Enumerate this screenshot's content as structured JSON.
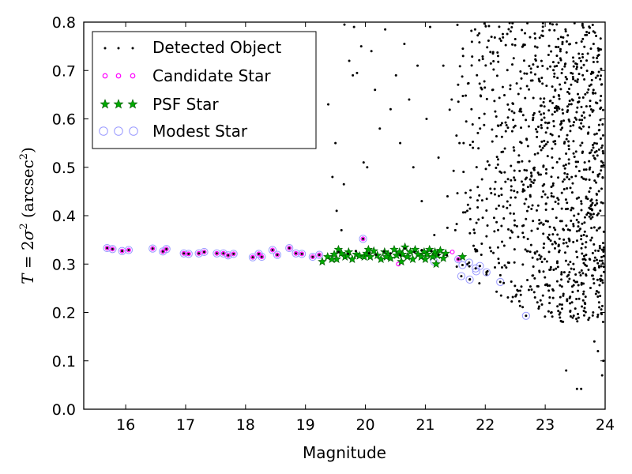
{
  "chart_data": {
    "type": "scatter",
    "xlabel": "Magnitude",
    "ylabel": {
      "var": "T",
      "eq": " = 2",
      "sigma": "σ",
      "two": "2",
      "unit_open": " (arcsec",
      "unit_close": ")"
    },
    "xlim": [
      15.3,
      24.0
    ],
    "ylim": [
      0.0,
      0.8
    ],
    "xticks": [
      16,
      17,
      18,
      19,
      20,
      21,
      22,
      23,
      24
    ],
    "yticks": [
      0.0,
      0.1,
      0.2,
      0.3,
      0.4,
      0.5,
      0.6,
      0.7,
      0.8
    ],
    "xtick_labels": [
      "16",
      "17",
      "18",
      "19",
      "20",
      "21",
      "22",
      "23",
      "24"
    ],
    "ytick_labels": [
      "0.0",
      "0.1",
      "0.2",
      "0.3",
      "0.4",
      "0.5",
      "0.6",
      "0.7",
      "0.8"
    ],
    "grid": false,
    "legend_position": "top-left",
    "colors": {
      "detected": "#000000",
      "candidate": "#ff00ff",
      "psf_fill": "#00aa00",
      "psf_edge": "#005500",
      "modest": "#9999ff"
    },
    "series": [
      {
        "name": "Detected Object",
        "marker": "dot",
        "points": [
          [
            15.69,
            0.333
          ],
          [
            15.78,
            0.331
          ],
          [
            15.94,
            0.327
          ],
          [
            16.05,
            0.329
          ],
          [
            16.45,
            0.332
          ],
          [
            16.62,
            0.326
          ],
          [
            16.68,
            0.331
          ],
          [
            16.97,
            0.322
          ],
          [
            17.05,
            0.321
          ],
          [
            17.22,
            0.322
          ],
          [
            17.31,
            0.325
          ],
          [
            17.52,
            0.322
          ],
          [
            17.63,
            0.322
          ],
          [
            17.71,
            0.318
          ],
          [
            17.8,
            0.321
          ],
          [
            18.12,
            0.314
          ],
          [
            18.22,
            0.321
          ],
          [
            18.27,
            0.315
          ],
          [
            18.45,
            0.329
          ],
          [
            18.53,
            0.319
          ],
          [
            18.73,
            0.333
          ],
          [
            18.84,
            0.322
          ],
          [
            18.94,
            0.321
          ],
          [
            19.12,
            0.315
          ],
          [
            19.23,
            0.319
          ],
          [
            19.55,
            0.325
          ],
          [
            19.71,
            0.321
          ],
          [
            19.84,
            0.327
          ],
          [
            19.96,
            0.352
          ],
          [
            20.06,
            0.322
          ],
          [
            20.18,
            0.319
          ],
          [
            20.31,
            0.326
          ],
          [
            20.42,
            0.322
          ],
          [
            20.58,
            0.318
          ],
          [
            20.66,
            0.332
          ],
          [
            20.82,
            0.325
          ],
          [
            20.94,
            0.329
          ],
          [
            21.1,
            0.327
          ],
          [
            21.22,
            0.319
          ],
          [
            21.36,
            0.318
          ],
          [
            21.55,
            0.31
          ],
          [
            21.62,
            0.298
          ],
          [
            21.73,
            0.303
          ],
          [
            21.84,
            0.291
          ],
          [
            21.91,
            0.296
          ],
          [
            22.02,
            0.283
          ],
          [
            22.25,
            0.263
          ],
          [
            21.6,
            0.275
          ],
          [
            21.74,
            0.268
          ],
          [
            22.68,
            0.193
          ],
          [
            19.65,
            0.795
          ],
          [
            19.73,
            0.72
          ],
          [
            19.79,
            0.69
          ],
          [
            19.86,
            0.695
          ],
          [
            19.93,
            0.75
          ],
          [
            19.97,
            0.51
          ],
          [
            20.03,
            0.5
          ],
          [
            20.1,
            0.74
          ],
          [
            20.16,
            0.66
          ],
          [
            20.24,
            0.58
          ],
          [
            20.33,
            0.785
          ],
          [
            20.42,
            0.62
          ],
          [
            20.51,
            0.69
          ],
          [
            20.58,
            0.55
          ],
          [
            20.65,
            0.755
          ],
          [
            20.73,
            0.64
          ],
          [
            20.8,
            0.5
          ],
          [
            20.87,
            0.71
          ],
          [
            20.94,
            0.43
          ],
          [
            21.02,
            0.6
          ],
          [
            21.08,
            0.79
          ],
          [
            21.15,
            0.36
          ],
          [
            21.22,
            0.52
          ],
          [
            21.3,
            0.71
          ],
          [
            21.37,
            0.44
          ],
          [
            21.44,
            0.64
          ],
          [
            21.5,
            0.37
          ],
          [
            21.57,
            0.55
          ],
          [
            21.63,
            0.73
          ],
          [
            21.7,
            0.41
          ],
          [
            21.77,
            0.62
          ],
          [
            21.83,
            0.785
          ],
          [
            19.38,
            0.63
          ],
          [
            19.45,
            0.48
          ],
          [
            19.52,
            0.41
          ],
          [
            19.6,
            0.37
          ],
          [
            19.5,
            0.55
          ],
          [
            19.64,
            0.465
          ],
          [
            19.81,
            0.79
          ]
        ],
        "random_fill": {
          "x_range": [
            21.3,
            24.0
          ],
          "y_range": [
            0.18,
            0.8
          ],
          "count": 1100,
          "seed": 7,
          "extra_low": [
            [
              23.35,
              0.08
            ],
            [
              23.53,
              0.042
            ],
            [
              23.6,
              0.042
            ],
            [
              23.82,
              0.14
            ],
            [
              23.88,
              0.12
            ],
            [
              23.97,
              0.1
            ],
            [
              23.95,
              0.07
            ],
            [
              23.72,
              0.185
            ],
            [
              23.8,
              0.2
            ],
            [
              23.66,
              0.22
            ]
          ]
        }
      },
      {
        "name": "Candidate Star",
        "marker": "circle",
        "points": [
          [
            15.69,
            0.333
          ],
          [
            15.78,
            0.331
          ],
          [
            15.94,
            0.327
          ],
          [
            16.05,
            0.329
          ],
          [
            16.45,
            0.332
          ],
          [
            16.62,
            0.326
          ],
          [
            16.68,
            0.331
          ],
          [
            16.97,
            0.322
          ],
          [
            17.05,
            0.321
          ],
          [
            17.22,
            0.322
          ],
          [
            17.31,
            0.325
          ],
          [
            17.52,
            0.322
          ],
          [
            17.63,
            0.322
          ],
          [
            17.71,
            0.318
          ],
          [
            17.8,
            0.321
          ],
          [
            18.12,
            0.314
          ],
          [
            18.22,
            0.321
          ],
          [
            18.27,
            0.315
          ],
          [
            18.45,
            0.329
          ],
          [
            18.53,
            0.319
          ],
          [
            18.73,
            0.333
          ],
          [
            18.84,
            0.322
          ],
          [
            18.94,
            0.321
          ],
          [
            19.12,
            0.315
          ],
          [
            19.23,
            0.319
          ],
          [
            19.96,
            0.352
          ],
          [
            20.55,
            0.3
          ],
          [
            21.55,
            0.31
          ],
          [
            21.45,
            0.325
          ]
        ]
      },
      {
        "name": "PSF Star",
        "marker": "star",
        "points": [
          [
            19.28,
            0.305
          ],
          [
            19.37,
            0.315
          ],
          [
            19.48,
            0.32
          ],
          [
            19.52,
            0.31
          ],
          [
            19.6,
            0.322
          ],
          [
            19.66,
            0.315
          ],
          [
            19.72,
            0.325
          ],
          [
            19.78,
            0.31
          ],
          [
            19.85,
            0.32
          ],
          [
            19.9,
            0.317
          ],
          [
            19.98,
            0.315
          ],
          [
            20.02,
            0.322
          ],
          [
            20.08,
            0.315
          ],
          [
            20.14,
            0.327
          ],
          [
            20.2,
            0.318
          ],
          [
            20.26,
            0.31
          ],
          [
            20.32,
            0.325
          ],
          [
            20.38,
            0.32
          ],
          [
            20.42,
            0.312
          ],
          [
            20.48,
            0.33
          ],
          [
            20.52,
            0.318
          ],
          [
            20.57,
            0.325
          ],
          [
            20.62,
            0.32
          ],
          [
            20.66,
            0.335
          ],
          [
            20.7,
            0.315
          ],
          [
            20.75,
            0.325
          ],
          [
            20.79,
            0.31
          ],
          [
            20.83,
            0.33
          ],
          [
            20.88,
            0.32
          ],
          [
            20.93,
            0.315
          ],
          [
            20.98,
            0.325
          ],
          [
            21.03,
            0.32
          ],
          [
            21.07,
            0.33
          ],
          [
            21.12,
            0.315
          ],
          [
            21.16,
            0.325
          ],
          [
            21.2,
            0.318
          ],
          [
            21.25,
            0.328
          ],
          [
            21.3,
            0.312
          ],
          [
            21.34,
            0.322
          ],
          [
            21.62,
            0.315
          ],
          [
            19.55,
            0.33
          ],
          [
            19.7,
            0.318
          ],
          [
            20.05,
            0.33
          ],
          [
            20.35,
            0.315
          ],
          [
            20.6,
            0.305
          ],
          [
            21.0,
            0.31
          ],
          [
            21.18,
            0.3
          ],
          [
            19.44,
            0.31
          ]
        ]
      },
      {
        "name": "Modest Star",
        "marker": "open-circle",
        "points": [
          [
            15.69,
            0.333
          ],
          [
            15.78,
            0.331
          ],
          [
            15.94,
            0.327
          ],
          [
            16.05,
            0.329
          ],
          [
            16.45,
            0.332
          ],
          [
            16.62,
            0.326
          ],
          [
            16.68,
            0.331
          ],
          [
            16.97,
            0.322
          ],
          [
            17.05,
            0.321
          ],
          [
            17.22,
            0.322
          ],
          [
            17.31,
            0.325
          ],
          [
            17.52,
            0.322
          ],
          [
            17.63,
            0.322
          ],
          [
            17.71,
            0.318
          ],
          [
            17.8,
            0.321
          ],
          [
            18.12,
            0.314
          ],
          [
            18.22,
            0.321
          ],
          [
            18.27,
            0.315
          ],
          [
            18.45,
            0.329
          ],
          [
            18.53,
            0.319
          ],
          [
            18.73,
            0.333
          ],
          [
            18.84,
            0.322
          ],
          [
            18.94,
            0.321
          ],
          [
            19.12,
            0.315
          ],
          [
            19.23,
            0.319
          ],
          [
            19.96,
            0.352
          ],
          [
            21.15,
            0.305
          ],
          [
            21.55,
            0.31
          ],
          [
            21.62,
            0.298
          ],
          [
            21.73,
            0.303
          ],
          [
            21.84,
            0.291
          ],
          [
            21.91,
            0.296
          ],
          [
            22.02,
            0.283
          ],
          [
            22.25,
            0.263
          ],
          [
            21.6,
            0.275
          ],
          [
            21.74,
            0.268
          ],
          [
            22.68,
            0.193
          ],
          [
            21.85,
            0.285
          ]
        ]
      }
    ]
  }
}
